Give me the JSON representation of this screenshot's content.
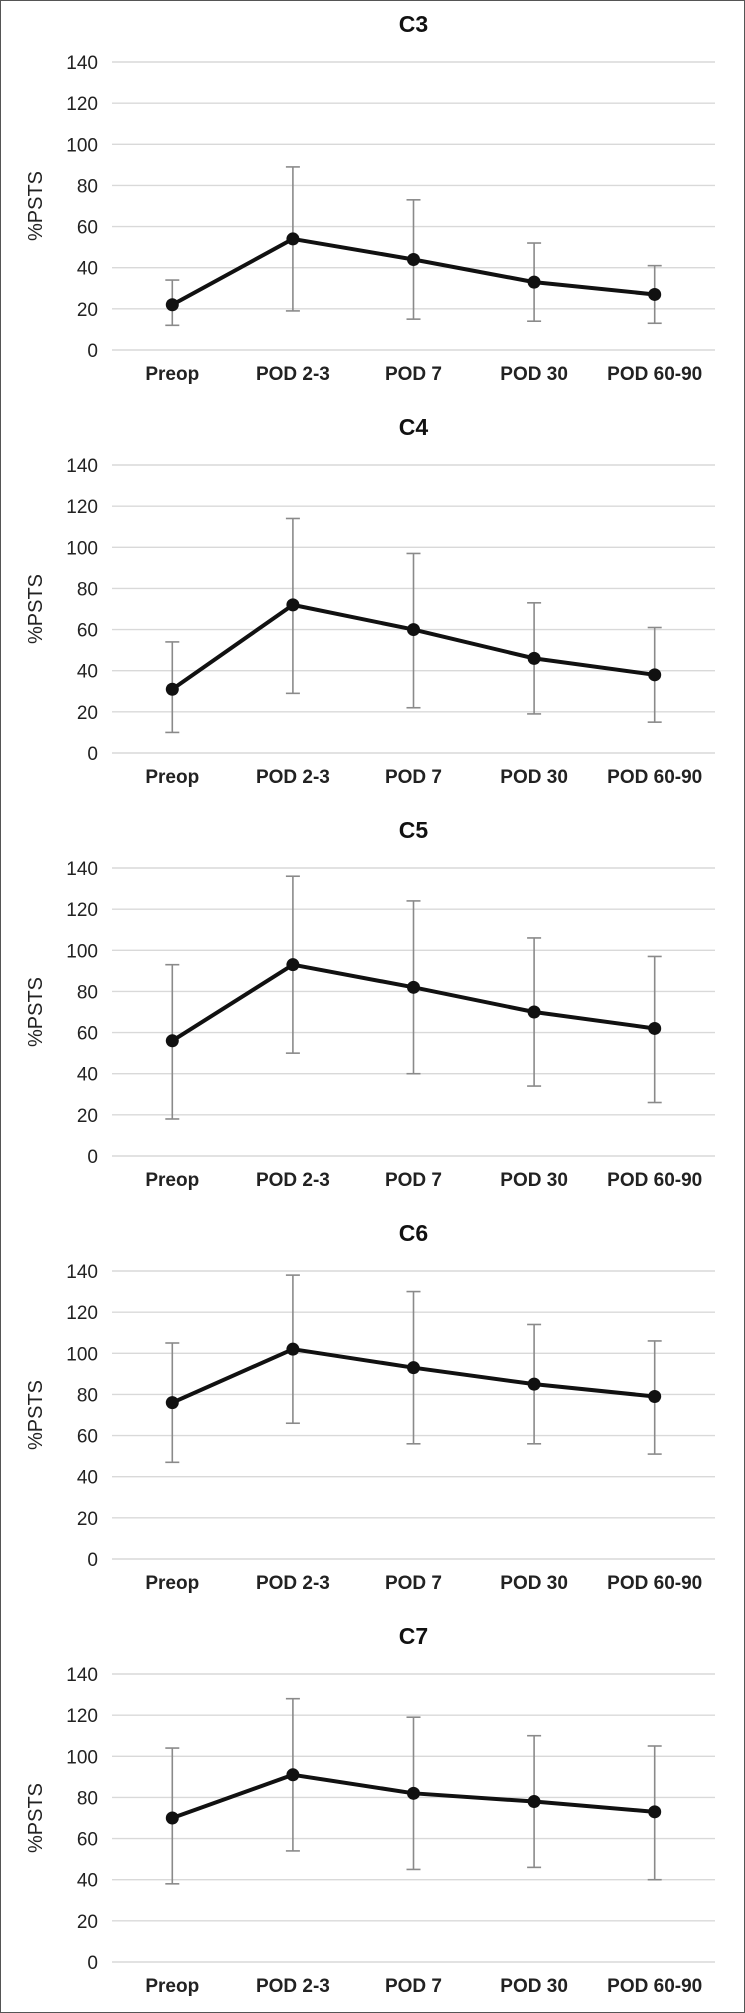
{
  "colors": {
    "line": "#111111",
    "error_bar": "#8a8a8a",
    "grid": "#d9d9d9",
    "text": "#222222"
  },
  "chart_data": [
    {
      "type": "line",
      "title": "C3",
      "ylabel": "%PSTS",
      "xlabel": "",
      "categories": [
        "Preop",
        "POD 2-3",
        "POD 7",
        "POD 30",
        "POD 60-90"
      ],
      "values": [
        22,
        54,
        44,
        33,
        27
      ],
      "error_low": [
        12,
        19,
        15,
        14,
        13
      ],
      "error_high": [
        34,
        89,
        73,
        52,
        41
      ],
      "ylim": [
        0,
        140
      ],
      "yticks": [
        "0",
        "20",
        "40",
        "60",
        "80",
        "100",
        "120",
        "140"
      ],
      "grid": true
    },
    {
      "type": "line",
      "title": "C4",
      "ylabel": "%PSTS",
      "xlabel": "",
      "categories": [
        "Preop",
        "POD 2-3",
        "POD 7",
        "POD 30",
        "POD 60-90"
      ],
      "values": [
        31,
        72,
        60,
        46,
        38
      ],
      "error_low": [
        10,
        29,
        22,
        19,
        15
      ],
      "error_high": [
        54,
        114,
        97,
        73,
        61
      ],
      "ylim": [
        0,
        140
      ],
      "yticks": [
        "0",
        "20",
        "40",
        "60",
        "80",
        "100",
        "120",
        "140"
      ],
      "grid": true
    },
    {
      "type": "line",
      "title": "C5",
      "ylabel": "%PSTS",
      "xlabel": "",
      "categories": [
        "Preop",
        "POD 2-3",
        "POD 7",
        "POD 30",
        "POD 60-90"
      ],
      "values": [
        56,
        93,
        82,
        70,
        62
      ],
      "error_low": [
        18,
        50,
        40,
        34,
        26
      ],
      "error_high": [
        93,
        136,
        124,
        106,
        97
      ],
      "ylim": [
        0,
        140
      ],
      "yticks": [
        "0",
        "20",
        "40",
        "60",
        "80",
        "100",
        "120",
        "140"
      ],
      "grid": true
    },
    {
      "type": "line",
      "title": "C6",
      "ylabel": "%PSTS",
      "xlabel": "",
      "categories": [
        "Preop",
        "POD 2-3",
        "POD 7",
        "POD 30",
        "POD 60-90"
      ],
      "values": [
        76,
        102,
        93,
        85,
        79
      ],
      "error_low": [
        47,
        66,
        56,
        56,
        51
      ],
      "error_high": [
        105,
        138,
        130,
        114,
        106
      ],
      "ylim": [
        0,
        140
      ],
      "yticks": [
        "0",
        "20",
        "40",
        "60",
        "80",
        "100",
        "120",
        "140"
      ],
      "grid": true
    },
    {
      "type": "line",
      "title": "C7",
      "ylabel": "%PSTS",
      "xlabel": "",
      "categories": [
        "Preop",
        "POD 2-3",
        "POD 7",
        "POD 30",
        "POD 60-90"
      ],
      "values": [
        70,
        91,
        82,
        78,
        73
      ],
      "error_low": [
        38,
        54,
        45,
        46,
        40
      ],
      "error_high": [
        104,
        128,
        119,
        110,
        105
      ],
      "ylim": [
        0,
        140
      ],
      "yticks": [
        "0",
        "20",
        "40",
        "60",
        "80",
        "100",
        "120",
        "140"
      ],
      "grid": true
    }
  ]
}
